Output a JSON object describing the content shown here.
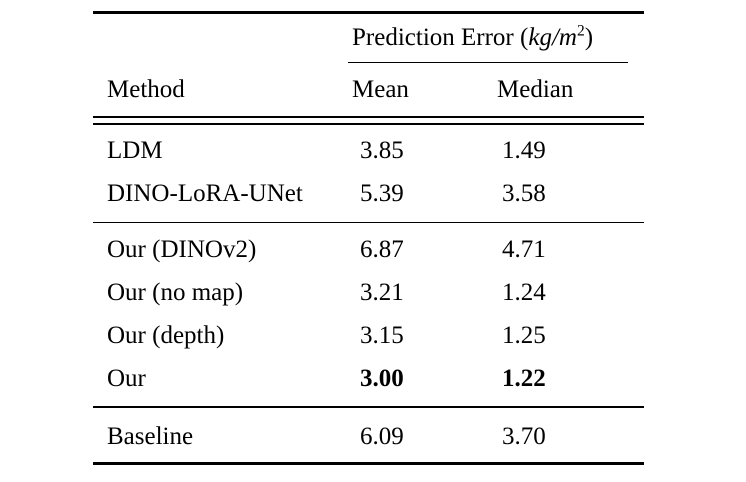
{
  "table": {
    "span_header": {
      "prefix": "Prediction Error (",
      "unit": "kg/m",
      "superscript": "2",
      "suffix": ")"
    },
    "columns": {
      "method": "Method",
      "mean": "Mean",
      "median": "Median"
    },
    "rows": [
      {
        "method": "LDM",
        "mean": "3.85",
        "median": "1.49",
        "emphasis": "normal"
      },
      {
        "method": "DINO-LoRA-UNet",
        "mean": "5.39",
        "median": "3.58",
        "emphasis": "normal"
      },
      {
        "method": "Our (DINOv2)",
        "mean": "6.87",
        "median": "4.71",
        "emphasis": "normal"
      },
      {
        "method": "Our (no map)",
        "mean": "3.21",
        "median": "1.24",
        "emphasis": "normal"
      },
      {
        "method": "Our (depth)",
        "mean": "3.15",
        "median": "1.25",
        "emphasis": "normal"
      },
      {
        "method": "Our",
        "mean": "3.00",
        "median": "1.22",
        "emphasis": "bold-values"
      },
      {
        "method": "Baseline",
        "mean": "6.09",
        "median": "3.70",
        "emphasis": "normal"
      }
    ],
    "colors": {
      "text": "#000000",
      "background": "#ffffff",
      "rule": "#000000"
    }
  },
  "chart_data": {
    "type": "table",
    "title": "Prediction Error (kg/m^2)",
    "categories": [
      "LDM",
      "DINO-LoRA-UNet",
      "Our (DINOv2)",
      "Our (no map)",
      "Our (depth)",
      "Our",
      "Baseline"
    ],
    "series": [
      {
        "name": "Mean",
        "values": [
          3.85,
          5.39,
          6.87,
          3.21,
          3.15,
          3.0,
          6.09
        ]
      },
      {
        "name": "Median",
        "values": [
          1.49,
          3.58,
          4.71,
          1.24,
          1.25,
          1.22,
          3.7
        ]
      }
    ],
    "best_row": "Our",
    "sections": [
      [
        "LDM",
        "DINO-LoRA-UNet"
      ],
      [
        "Our (DINOv2)",
        "Our (no map)",
        "Our (depth)",
        "Our"
      ],
      [
        "Baseline"
      ]
    ]
  }
}
